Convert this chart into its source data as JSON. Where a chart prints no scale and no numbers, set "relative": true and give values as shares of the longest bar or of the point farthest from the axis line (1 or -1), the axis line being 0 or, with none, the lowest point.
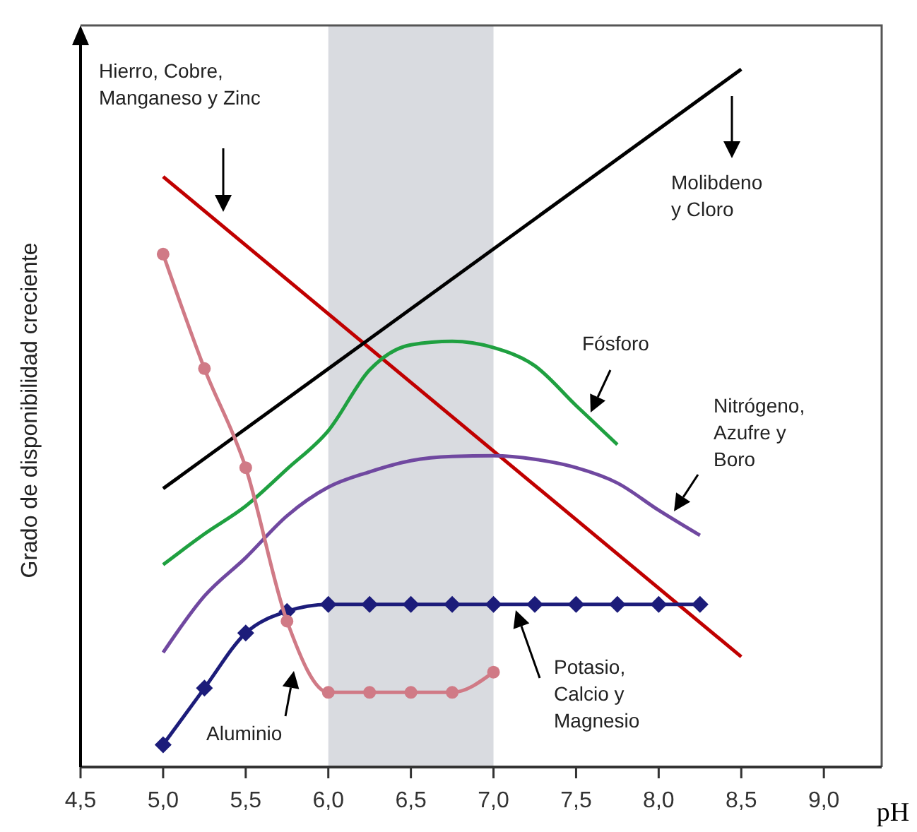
{
  "chart_data": {
    "type": "line",
    "relative": true,
    "xlabel": "pH",
    "ylabel": "Grado de disponibilidad creciente",
    "xlim": [
      4.5,
      9.35
    ],
    "xticks": [
      {
        "value": 4.5,
        "label": "4,5"
      },
      {
        "value": 5.0,
        "label": "5,0"
      },
      {
        "value": 5.5,
        "label": "5,5"
      },
      {
        "value": 6.0,
        "label": "6,0"
      },
      {
        "value": 6.5,
        "label": "6,5"
      },
      {
        "value": 7.0,
        "label": "7,0"
      },
      {
        "value": 7.5,
        "label": "7,5"
      },
      {
        "value": 8.0,
        "label": "8,0"
      },
      {
        "value": 8.5,
        "label": "8,5"
      },
      {
        "value": 9.0,
        "label": "9,0"
      }
    ],
    "annotations": [
      "Hierro, Cobre,\nManganeso y Zinc",
      "Molibdeno\ny Cloro",
      "Fósforo",
      "Nitrógeno,\nAzufre y\nBoro",
      "Potasio,\nCalcio y\nMagnesio",
      "Aluminio"
    ],
    "bands": [
      {
        "axis": "x",
        "from": 6.0,
        "to": 7.0,
        "color": "#d9dbe0"
      }
    ],
    "series": [
      {
        "color": "#c00000",
        "marker": "none",
        "x": [
          5.0,
          8.5
        ],
        "values": [
          0.846,
          0.158
        ]
      },
      {
        "color": "#000000",
        "marker": "none",
        "x": [
          5.0,
          8.5
        ],
        "values": [
          0.399,
          1.0
        ]
      },
      {
        "color": "#1fa040",
        "marker": "none",
        "x": [
          5.0,
          5.25,
          5.5,
          5.75,
          6.0,
          6.25,
          6.5,
          6.75,
          7.0,
          7.25,
          7.5,
          7.75
        ],
        "values": [
          0.29,
          0.334,
          0.374,
          0.427,
          0.482,
          0.569,
          0.605,
          0.61,
          0.601,
          0.575,
          0.518,
          0.462
        ]
      },
      {
        "color": "#7048a0",
        "marker": "none",
        "x": [
          5.0,
          5.25,
          5.5,
          5.75,
          6.0,
          6.25,
          6.5,
          6.75,
          7.0,
          7.25,
          7.5,
          7.75,
          8.0,
          8.25
        ],
        "values": [
          0.164,
          0.245,
          0.3,
          0.36,
          0.401,
          0.423,
          0.439,
          0.445,
          0.446,
          0.441,
          0.429,
          0.407,
          0.368,
          0.332
        ]
      },
      {
        "color": "#1c1c7a",
        "marker": "diamond",
        "x": [
          5.0,
          5.25,
          5.5,
          5.75,
          6.0,
          6.25,
          6.5,
          6.75,
          7.0,
          7.25,
          7.5,
          7.75,
          8.0,
          8.25
        ],
        "values": [
          0.032,
          0.113,
          0.192,
          0.223,
          0.233,
          0.233,
          0.233,
          0.233,
          0.233,
          0.233,
          0.233,
          0.233,
          0.233,
          0.233
        ]
      },
      {
        "color": "#d07a86",
        "marker": "circle",
        "x": [
          5.0,
          5.25,
          5.5,
          5.75,
          6.0,
          6.25,
          6.5,
          6.75,
          7.0
        ],
        "values": [
          0.735,
          0.571,
          0.429,
          0.209,
          0.107,
          0.107,
          0.107,
          0.107,
          0.136
        ]
      }
    ]
  }
}
